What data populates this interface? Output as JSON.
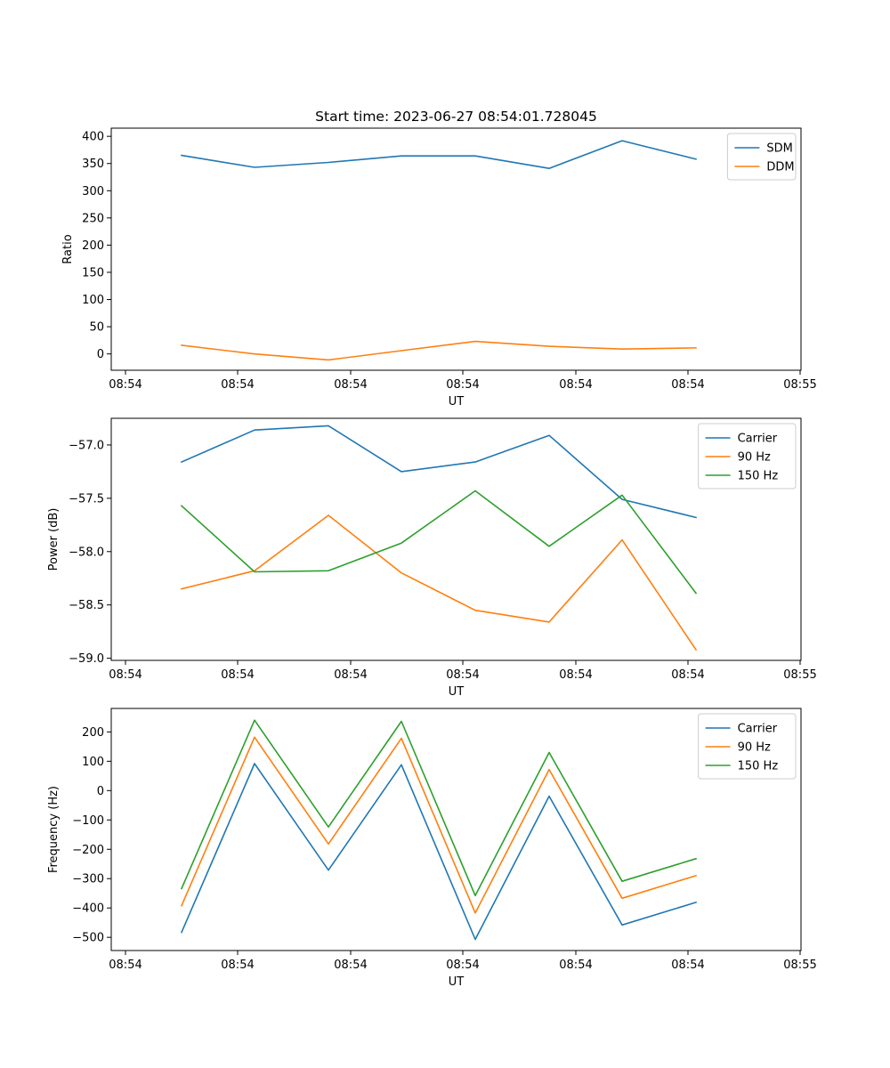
{
  "figure": {
    "title": "Start time: 2023-06-27 08:54:01.728045"
  },
  "x_ticks": [
    "08:54",
    "08:54",
    "08:54",
    "08:54",
    "08:54",
    "08:54",
    "08:55"
  ],
  "chart_data": [
    {
      "type": "line",
      "xlabel": "UT",
      "ylabel": "Ratio",
      "ylim": [
        -30,
        415
      ],
      "yticks": [
        0,
        50,
        100,
        150,
        200,
        250,
        300,
        350,
        400
      ],
      "ytick_labels": [
        "0",
        "50",
        "100",
        "150",
        "200",
        "250",
        "300",
        "350",
        "400"
      ],
      "legend_position": "top-right",
      "grid": false,
      "x": [
        1,
        2,
        3,
        4,
        5,
        6,
        7,
        8
      ],
      "series": [
        {
          "name": "SDM",
          "color": "#1f77b4",
          "values": [
            365,
            343,
            352,
            364,
            364,
            341,
            392,
            358
          ]
        },
        {
          "name": "DDM",
          "color": "#ff7f0e",
          "values": [
            16,
            0,
            -11,
            6,
            23,
            14,
            9,
            11
          ]
        }
      ]
    },
    {
      "type": "line",
      "xlabel": "UT",
      "ylabel": "Power (dB)",
      "ylim": [
        -59.02,
        -56.75
      ],
      "yticks": [
        -57.0,
        -57.5,
        -58.0,
        -58.5,
        -59.0
      ],
      "ytick_labels": [
        "−57.0",
        "−57.5",
        "−58.0",
        "−58.5",
        "−59.0"
      ],
      "legend_position": "top-right",
      "grid": false,
      "x": [
        1,
        2,
        3,
        4,
        5,
        6,
        7,
        8
      ],
      "series": [
        {
          "name": "Carrier",
          "color": "#1f77b4",
          "values": [
            -57.16,
            -56.86,
            -56.82,
            -57.25,
            -57.16,
            -56.91,
            -57.51,
            -57.68
          ]
        },
        {
          "name": "90 Hz",
          "color": "#ff7f0e",
          "values": [
            -58.35,
            -58.18,
            -57.66,
            -58.2,
            -58.55,
            -58.66,
            -57.89,
            -58.92
          ]
        },
        {
          "name": "150 Hz",
          "color": "#2ca02c",
          "values": [
            -57.57,
            -58.19,
            -58.18,
            -57.92,
            -57.43,
            -57.95,
            -57.47,
            -58.39
          ]
        }
      ]
    },
    {
      "type": "line",
      "xlabel": "UT",
      "ylabel": "Frequency (Hz)",
      "ylim": [
        -545,
        280
      ],
      "yticks": [
        200,
        100,
        0,
        -100,
        -200,
        -300,
        -400,
        -500
      ],
      "ytick_labels": [
        "200",
        "100",
        "0",
        "−100",
        "−200",
        "−300",
        "−400",
        "−500"
      ],
      "legend_position": "top-right",
      "grid": false,
      "x": [
        1,
        2,
        3,
        4,
        5,
        6,
        7,
        8
      ],
      "series": [
        {
          "name": "Carrier",
          "color": "#1f77b4",
          "values": [
            -483,
            92,
            -271,
            88,
            -507,
            -19,
            -458,
            -381
          ]
        },
        {
          "name": "90 Hz",
          "color": "#ff7f0e",
          "values": [
            -392,
            182,
            -182,
            178,
            -417,
            72,
            -367,
            -290
          ]
        },
        {
          "name": "150 Hz",
          "color": "#2ca02c",
          "values": [
            -334,
            240,
            -124,
            236,
            -358,
            130,
            -309,
            -232
          ]
        }
      ]
    }
  ]
}
